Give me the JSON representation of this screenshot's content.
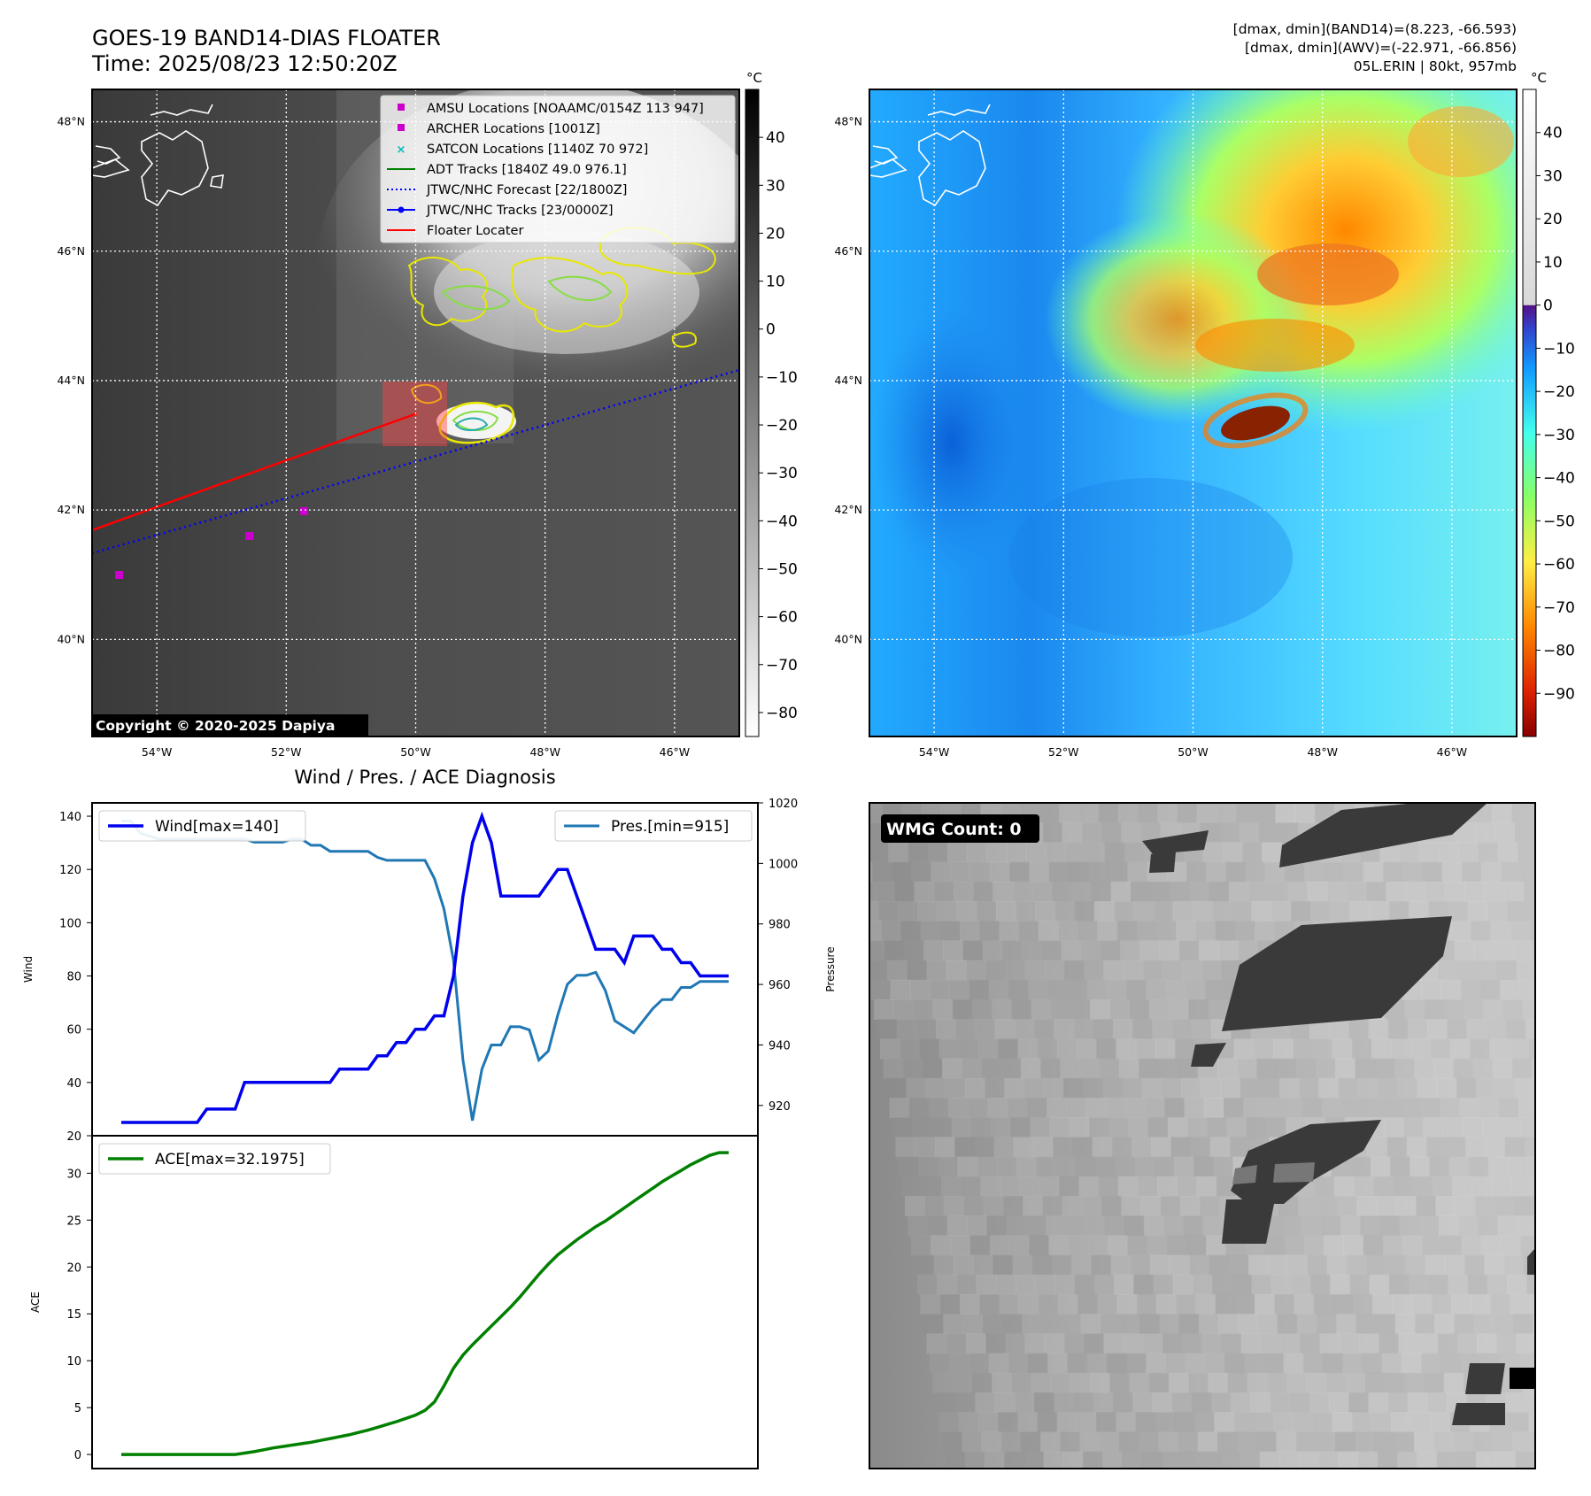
{
  "header": {
    "title_line1": "GOES-19 BAND14-DIAS FLOATER",
    "title_line2": "Time: 2025/08/23 12:50:20Z",
    "info_line1": "[dmax, dmin](BAND14)=(8.223, -66.593)",
    "info_line2": "[dmax, dmin](AWV)=(-22.971, -66.856)",
    "info_line3": "05L.ERIN | 80kt, 957mb"
  },
  "copyright": "Copyright © 2020-2025 Dapiya",
  "map": {
    "lon_ticks": [
      "54°W",
      "52°W",
      "50°W",
      "48°W",
      "46°W"
    ],
    "lat_ticks": [
      "48°N",
      "46°N",
      "44°N",
      "42°N",
      "40°N"
    ],
    "lon_values": [
      -54,
      -52,
      -50,
      -48,
      -46
    ],
    "lat_values": [
      48,
      46,
      44,
      42,
      40
    ],
    "lon_range": [
      -55,
      -45
    ],
    "lat_range": [
      38.5,
      48.5
    ]
  },
  "legend": {
    "items": [
      {
        "label": "AMSU Locations [NOAAMC/0154Z 113 947]",
        "color": "#cc00cc"
      },
      {
        "label": "ARCHER Locations [1001Z]",
        "color": "#cc00cc"
      },
      {
        "label": "SATCON Locations [1140Z 70 972]",
        "color": "#00bbbb"
      },
      {
        "label": "ADT Tracks [1840Z 49.0 976.1]",
        "color": "#008000"
      },
      {
        "label": "JTWC/NHC Forecast [22/1800Z]",
        "color": "#0000ff"
      },
      {
        "label": "JTWC/NHC Tracks [23/0000Z]",
        "color": "#0000ff"
      },
      {
        "label": "Floater Locater",
        "color": "#ff0000"
      }
    ]
  },
  "colorbar_ir": {
    "unit": "°C",
    "ticks": [
      "40",
      "30",
      "20",
      "10",
      "0",
      "−10",
      "−20",
      "−30",
      "−40",
      "−50",
      "−60",
      "−70",
      "−80"
    ],
    "values": [
      40,
      30,
      20,
      10,
      0,
      -10,
      -20,
      -30,
      -40,
      -50,
      -60,
      -70,
      -80
    ],
    "range": [
      -85,
      50
    ]
  },
  "colorbar_wv": {
    "unit": "°C",
    "ticks": [
      "40",
      "30",
      "20",
      "10",
      "0",
      "−10",
      "−20",
      "−30",
      "−40",
      "−50",
      "−60",
      "−70",
      "−80",
      "−90"
    ],
    "values": [
      40,
      30,
      20,
      10,
      0,
      -10,
      -20,
      -30,
      -40,
      -50,
      -60,
      -70,
      -80,
      -90
    ],
    "range": [
      -100,
      50
    ]
  },
  "wmg": {
    "label": "WMG Count: 0"
  },
  "chart_data": [
    {
      "type": "line",
      "title": "Wind / Pres. / ACE Diagnosis",
      "ylabel": "Wind",
      "y2label": "Pressure",
      "ylim": [
        20,
        145
      ],
      "y2lim": [
        910,
        1020
      ],
      "yticks": [
        20,
        40,
        60,
        80,
        100,
        120,
        140
      ],
      "y2ticks": [
        920,
        940,
        960,
        980,
        1000,
        1020
      ],
      "series": [
        {
          "name": "Wind[max=140]",
          "axis": "left",
          "color": "#0000ee",
          "values": [
            25,
            25,
            25,
            25,
            25,
            25,
            25,
            25,
            25,
            30,
            30,
            30,
            30,
            40,
            40,
            40,
            40,
            40,
            40,
            40,
            40,
            40,
            40,
            45,
            45,
            45,
            45,
            50,
            50,
            55,
            55,
            60,
            60,
            65,
            65,
            80,
            110,
            130,
            140,
            130,
            110,
            110,
            110,
            110,
            110,
            115,
            120,
            120,
            110,
            100,
            90,
            90,
            90,
            85,
            95,
            95,
            95,
            90,
            90,
            85,
            85,
            80,
            80,
            80,
            80
          ]
        },
        {
          "name": "Pres.[min=915]",
          "axis": "right",
          "color": "#1f77b4",
          "values": [
            1014,
            1014,
            1010,
            1009,
            1008,
            1008,
            1008,
            1008,
            1008,
            1008,
            1008,
            1008,
            1008,
            1008,
            1007,
            1007,
            1007,
            1007,
            1008,
            1008,
            1006,
            1006,
            1004,
            1004,
            1004,
            1004,
            1004,
            1002,
            1001,
            1001,
            1001,
            1001,
            1001,
            995,
            985,
            968,
            935,
            915,
            932,
            940,
            940,
            946,
            946,
            945,
            935,
            938,
            950,
            960,
            963,
            963,
            964,
            958,
            948,
            946,
            944,
            948,
            952,
            955,
            955,
            959,
            959,
            961,
            961,
            961,
            961
          ]
        }
      ]
    },
    {
      "type": "line",
      "ylabel": "ACE",
      "ylim": [
        -1.5,
        34
      ],
      "yticks": [
        0,
        5,
        10,
        15,
        20,
        25,
        30
      ],
      "series": [
        {
          "name": "ACE[max=32.1975]",
          "color": "#008000",
          "values": [
            0,
            0,
            0,
            0,
            0,
            0,
            0,
            0,
            0,
            0,
            0,
            0,
            0,
            0.15,
            0.3,
            0.5,
            0.7,
            0.85,
            1.0,
            1.15,
            1.3,
            1.5,
            1.7,
            1.9,
            2.1,
            2.35,
            2.6,
            2.9,
            3.2,
            3.5,
            3.85,
            4.2,
            4.7,
            5.6,
            7.3,
            9.2,
            10.6,
            11.7,
            12.7,
            13.7,
            14.7,
            15.7,
            16.8,
            18.0,
            19.2,
            20.3,
            21.3,
            22.1,
            22.9,
            23.6,
            24.3,
            24.9,
            25.6,
            26.3,
            27.0,
            27.7,
            28.4,
            29.1,
            29.7,
            30.3,
            30.9,
            31.4,
            31.9,
            32.2,
            32.2
          ]
        }
      ]
    }
  ]
}
